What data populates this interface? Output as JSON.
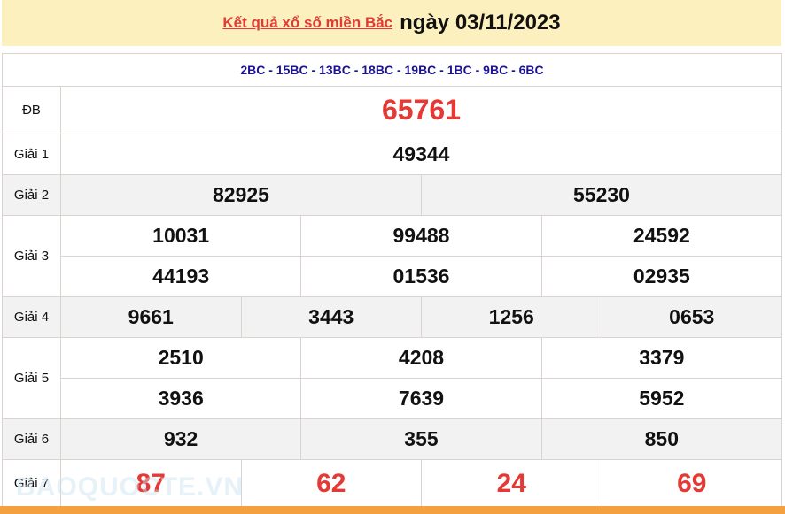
{
  "header": {
    "link": "Kết quả xổ số miền Bắc",
    "date": "ngày 03/11/2023"
  },
  "codes": "2BC - 15BC - 13BC - 18BC - 19BC - 1BC - 9BC - 6BC",
  "prizes": [
    {
      "label": "ĐB",
      "rows": [
        [
          "65761"
        ]
      ]
    },
    {
      "label": "Giải 1",
      "rows": [
        [
          "49344"
        ]
      ]
    },
    {
      "label": "Giải 2",
      "rows": [
        [
          "82925",
          "55230"
        ]
      ]
    },
    {
      "label": "Giải 3",
      "rows": [
        [
          "10031",
          "99488",
          "24592"
        ],
        [
          "44193",
          "01536",
          "02935"
        ]
      ]
    },
    {
      "label": "Giải 4",
      "rows": [
        [
          "9661",
          "3443",
          "1256",
          "0653"
        ]
      ]
    },
    {
      "label": "Giải 5",
      "rows": [
        [
          "2510",
          "4208",
          "3379"
        ],
        [
          "3936",
          "7639",
          "5952"
        ]
      ]
    },
    {
      "label": "Giải 6",
      "rows": [
        [
          "932",
          "355",
          "850"
        ]
      ]
    },
    {
      "label": "Giải 7",
      "rows": [
        [
          "87",
          "62",
          "24",
          "69"
        ]
      ]
    }
  ],
  "watermark": "BAOQUOCTE.VN",
  "colors": {
    "header_bg": "#fdf0bf",
    "highlight": "#e53935",
    "codes": "#1c1296",
    "footer_bar": "#f4a040"
  }
}
